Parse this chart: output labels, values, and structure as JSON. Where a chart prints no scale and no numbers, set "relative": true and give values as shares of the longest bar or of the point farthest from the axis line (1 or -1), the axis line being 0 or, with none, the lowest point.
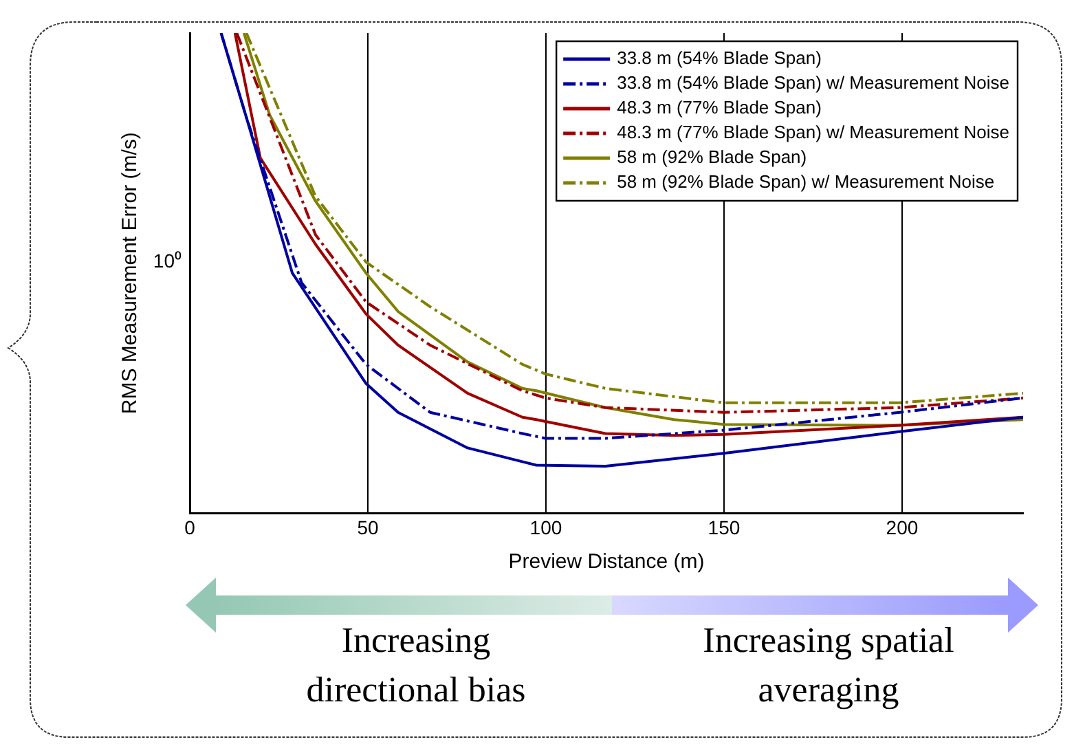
{
  "chart_data": {
    "type": "line",
    "relative": true,
    "xlabel": "Preview Distance (m)",
    "ylabel": "RMS Measurement Error (m/s)",
    "grid": "x",
    "legend": "top right",
    "marker": "none",
    "xlim": [
      0,
      234
    ],
    "xticks": [
      0,
      50,
      100,
      150,
      200
    ],
    "annotations": [
      "10⁰",
      "Increasing directional bias",
      "Increasing spatial averaging"
    ],
    "series": [
      {
        "name": "33.8 m (54% Blade Span)",
        "color": "#0000a0",
        "line_style": "solid",
        "x": [
          8.8,
          15.9,
          28.8,
          49.5,
          58.5,
          78,
          97.3,
          116.7,
          150.3,
          199.3,
          234
        ],
        "values": [
          1,
          0.824,
          0.5,
          0.27,
          0.21,
          0.136,
          0.1,
          0.098,
          0.125,
          0.17,
          0.2
        ]
      },
      {
        "name": "33.8 m (54% Blade Span) w/ Measurement Noise",
        "color": "#0000a0",
        "line_style": "dashed",
        "x": [
          8.8,
          15.9,
          31.4,
          49.5,
          67.5,
          93.4,
          99.9,
          116.7,
          150,
          199.3,
          234
        ],
        "values": [
          1,
          0.824,
          0.48,
          0.31,
          0.21,
          0.166,
          0.156,
          0.156,
          0.173,
          0.21,
          0.24
        ]
      },
      {
        "name": "48.3 m (77% Blade Span)",
        "color": "#a00000",
        "line_style": "solid",
        "x": [
          12.7,
          19.8,
          35.3,
          49.5,
          58.5,
          78,
          93.4,
          97.3,
          116.7,
          136,
          150,
          199.3,
          234
        ],
        "values": [
          1,
          0.74,
          0.56,
          0.415,
          0.35,
          0.25,
          0.2,
          0.195,
          0.166,
          0.162,
          0.164,
          0.183,
          0.2
        ]
      },
      {
        "name": "48.3 m (77% Blade Span) w/ Measurement Noise",
        "color": "#a00000",
        "line_style": "dashed",
        "x": [
          13.2,
          35.3,
          49.5,
          67.5,
          93.4,
          99.9,
          116.7,
          150,
          199.3,
          234
        ],
        "values": [
          1,
          0.58,
          0.44,
          0.35,
          0.255,
          0.24,
          0.22,
          0.21,
          0.22,
          0.24
        ]
      },
      {
        "name": "58 m (92% Blade Span)",
        "color": "#808000",
        "line_style": "solid",
        "x": [
          15.2,
          22.4,
          35.3,
          49.5,
          58.5,
          78,
          93.4,
          97.3,
          116.7,
          136,
          150,
          199.3,
          234
        ],
        "values": [
          1,
          0.83,
          0.65,
          0.5,
          0.42,
          0.315,
          0.26,
          0.255,
          0.22,
          0.195,
          0.185,
          0.183,
          0.195
        ]
      },
      {
        "name": "58 m (92% Blade Span) w/ Measurement Noise",
        "color": "#808000",
        "line_style": "dashed",
        "x": [
          15.9,
          35.3,
          49.5,
          67.5,
          93.4,
          99.9,
          116.7,
          150,
          199.3,
          234
        ],
        "values": [
          1,
          0.66,
          0.523,
          0.43,
          0.31,
          0.29,
          0.26,
          0.23,
          0.23,
          0.25
        ]
      }
    ]
  }
}
